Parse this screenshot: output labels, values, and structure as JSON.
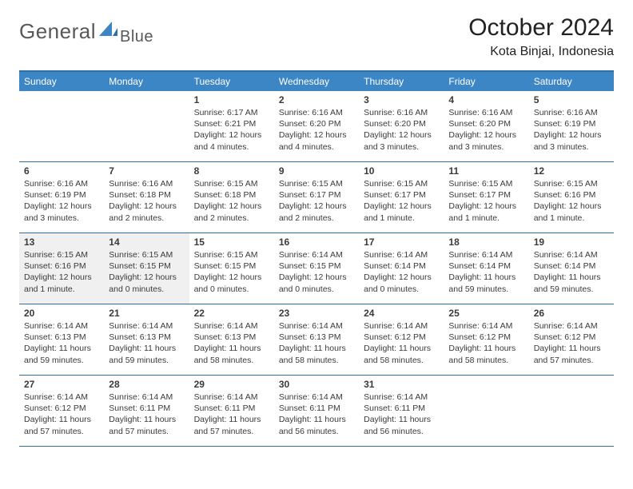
{
  "brand": {
    "name_a": "General",
    "name_b": "Blue",
    "accent": "#3d86c6"
  },
  "title": "October 2024",
  "location": "Kota Binjai, Indonesia",
  "colors": {
    "header_bg": "#3d86c6",
    "border": "#2f6fa8",
    "shade": "#f0f0f0",
    "text": "#3a3a3a",
    "logo_text": "#585858"
  },
  "dow": [
    "Sunday",
    "Monday",
    "Tuesday",
    "Wednesday",
    "Thursday",
    "Friday",
    "Saturday"
  ],
  "weeks": [
    [
      null,
      null,
      {
        "n": "1",
        "sr": "6:17 AM",
        "ss": "6:21 PM",
        "d": "12 hours and 4 minutes."
      },
      {
        "n": "2",
        "sr": "6:16 AM",
        "ss": "6:20 PM",
        "d": "12 hours and 4 minutes."
      },
      {
        "n": "3",
        "sr": "6:16 AM",
        "ss": "6:20 PM",
        "d": "12 hours and 3 minutes."
      },
      {
        "n": "4",
        "sr": "6:16 AM",
        "ss": "6:20 PM",
        "d": "12 hours and 3 minutes."
      },
      {
        "n": "5",
        "sr": "6:16 AM",
        "ss": "6:19 PM",
        "d": "12 hours and 3 minutes."
      }
    ],
    [
      {
        "n": "6",
        "sr": "6:16 AM",
        "ss": "6:19 PM",
        "d": "12 hours and 3 minutes."
      },
      {
        "n": "7",
        "sr": "6:16 AM",
        "ss": "6:18 PM",
        "d": "12 hours and 2 minutes."
      },
      {
        "n": "8",
        "sr": "6:15 AM",
        "ss": "6:18 PM",
        "d": "12 hours and 2 minutes."
      },
      {
        "n": "9",
        "sr": "6:15 AM",
        "ss": "6:17 PM",
        "d": "12 hours and 2 minutes."
      },
      {
        "n": "10",
        "sr": "6:15 AM",
        "ss": "6:17 PM",
        "d": "12 hours and 1 minute."
      },
      {
        "n": "11",
        "sr": "6:15 AM",
        "ss": "6:17 PM",
        "d": "12 hours and 1 minute."
      },
      {
        "n": "12",
        "sr": "6:15 AM",
        "ss": "6:16 PM",
        "d": "12 hours and 1 minute."
      }
    ],
    [
      {
        "n": "13",
        "sr": "6:15 AM",
        "ss": "6:16 PM",
        "d": "12 hours and 1 minute."
      },
      {
        "n": "14",
        "sr": "6:15 AM",
        "ss": "6:15 PM",
        "d": "12 hours and 0 minutes."
      },
      {
        "n": "15",
        "sr": "6:15 AM",
        "ss": "6:15 PM",
        "d": "12 hours and 0 minutes."
      },
      {
        "n": "16",
        "sr": "6:14 AM",
        "ss": "6:15 PM",
        "d": "12 hours and 0 minutes."
      },
      {
        "n": "17",
        "sr": "6:14 AM",
        "ss": "6:14 PM",
        "d": "12 hours and 0 minutes."
      },
      {
        "n": "18",
        "sr": "6:14 AM",
        "ss": "6:14 PM",
        "d": "11 hours and 59 minutes."
      },
      {
        "n": "19",
        "sr": "6:14 AM",
        "ss": "6:14 PM",
        "d": "11 hours and 59 minutes."
      }
    ],
    [
      {
        "n": "20",
        "sr": "6:14 AM",
        "ss": "6:13 PM",
        "d": "11 hours and 59 minutes."
      },
      {
        "n": "21",
        "sr": "6:14 AM",
        "ss": "6:13 PM",
        "d": "11 hours and 59 minutes."
      },
      {
        "n": "22",
        "sr": "6:14 AM",
        "ss": "6:13 PM",
        "d": "11 hours and 58 minutes."
      },
      {
        "n": "23",
        "sr": "6:14 AM",
        "ss": "6:13 PM",
        "d": "11 hours and 58 minutes."
      },
      {
        "n": "24",
        "sr": "6:14 AM",
        "ss": "6:12 PM",
        "d": "11 hours and 58 minutes."
      },
      {
        "n": "25",
        "sr": "6:14 AM",
        "ss": "6:12 PM",
        "d": "11 hours and 58 minutes."
      },
      {
        "n": "26",
        "sr": "6:14 AM",
        "ss": "6:12 PM",
        "d": "11 hours and 57 minutes."
      }
    ],
    [
      {
        "n": "27",
        "sr": "6:14 AM",
        "ss": "6:12 PM",
        "d": "11 hours and 57 minutes."
      },
      {
        "n": "28",
        "sr": "6:14 AM",
        "ss": "6:11 PM",
        "d": "11 hours and 57 minutes."
      },
      {
        "n": "29",
        "sr": "6:14 AM",
        "ss": "6:11 PM",
        "d": "11 hours and 57 minutes."
      },
      {
        "n": "30",
        "sr": "6:14 AM",
        "ss": "6:11 PM",
        "d": "11 hours and 56 minutes."
      },
      {
        "n": "31",
        "sr": "6:14 AM",
        "ss": "6:11 PM",
        "d": "11 hours and 56 minutes."
      },
      null,
      null
    ]
  ],
  "shaded_days": [
    "13",
    "14"
  ]
}
